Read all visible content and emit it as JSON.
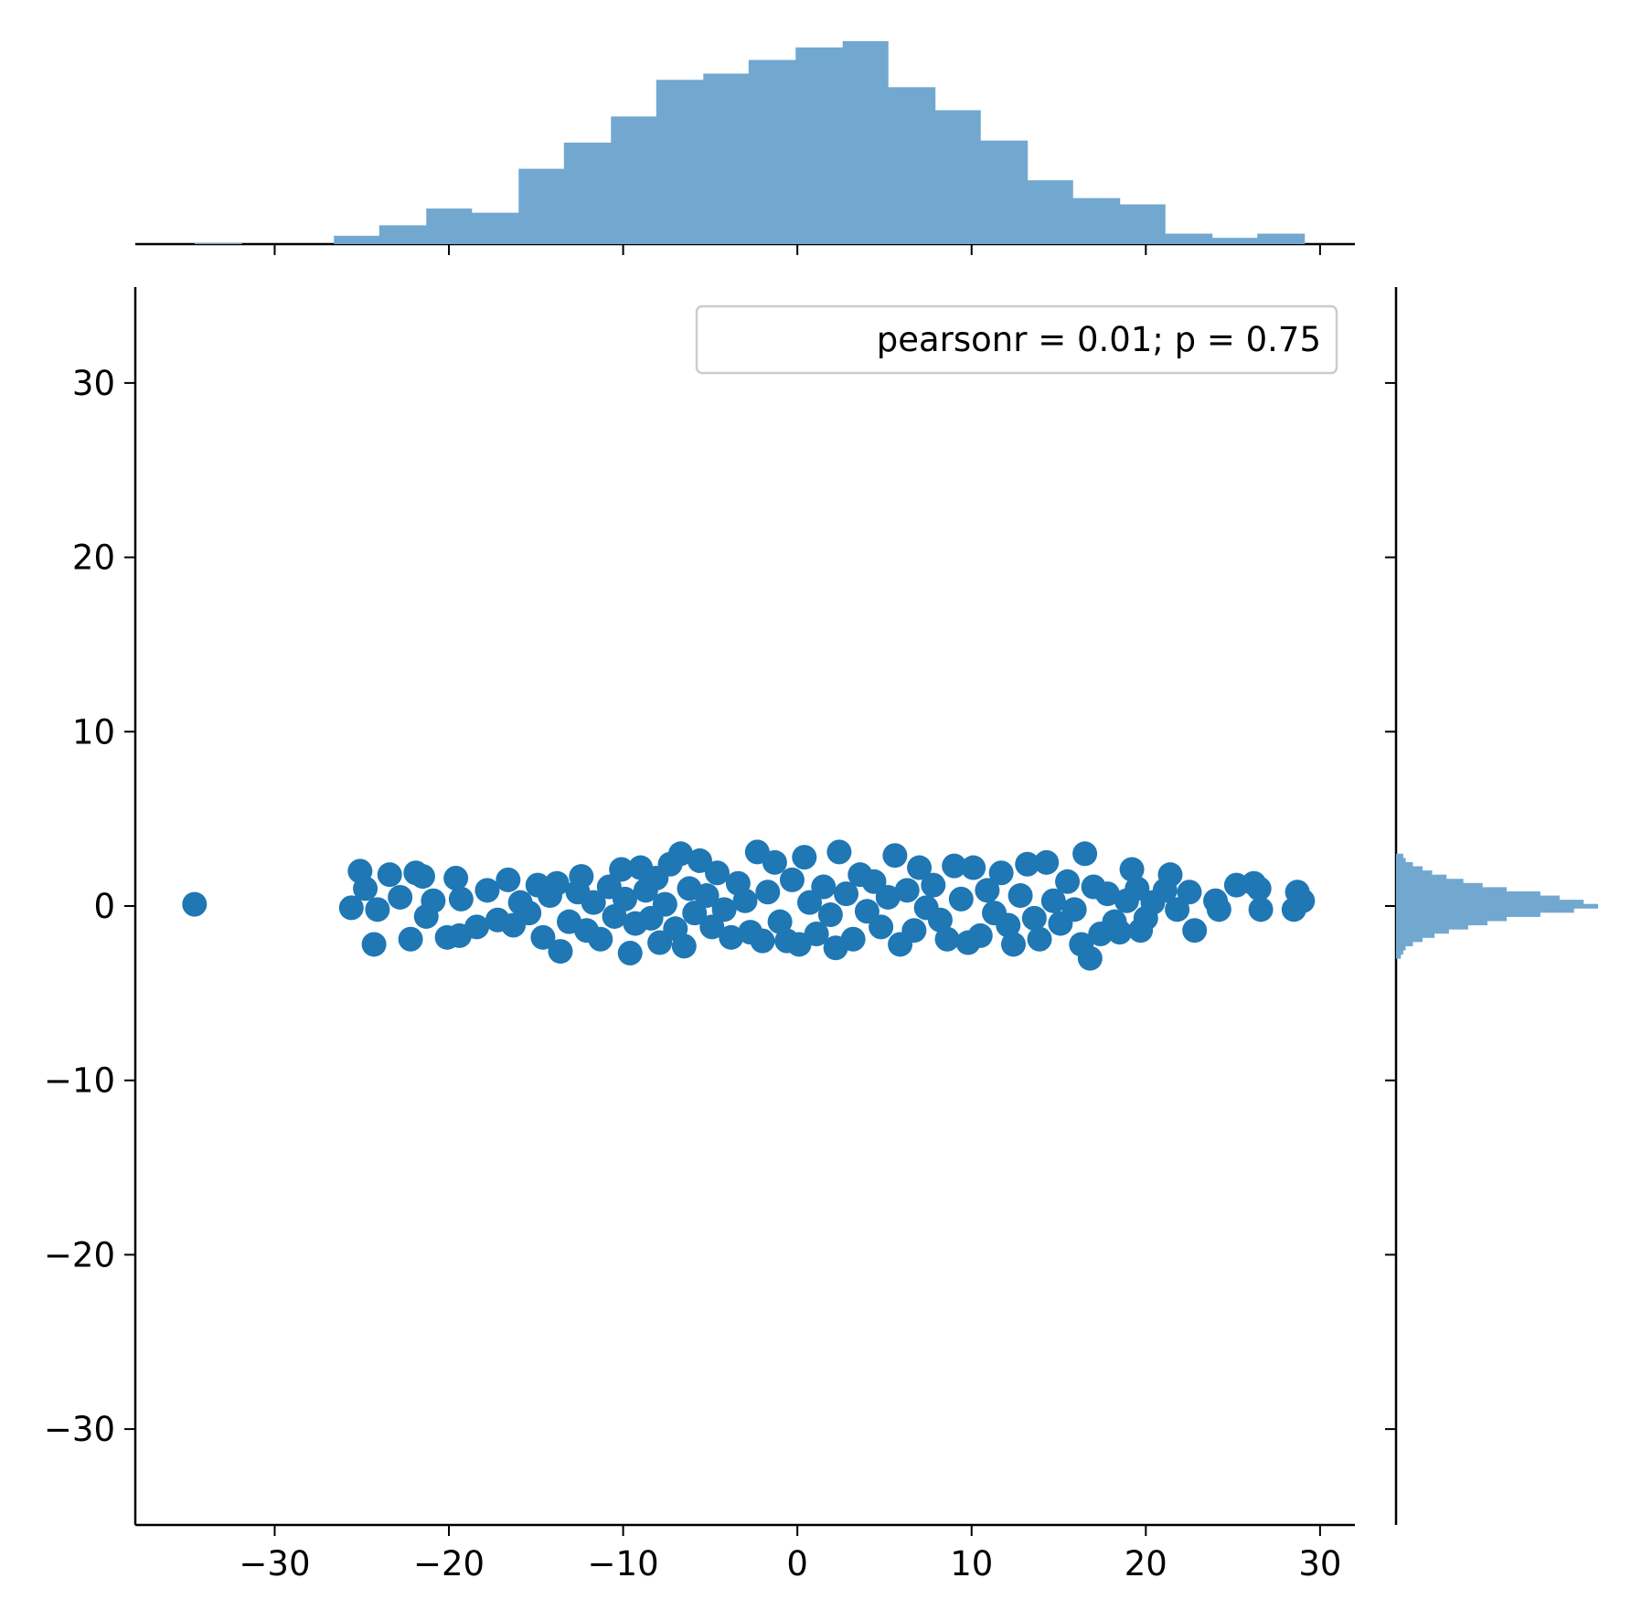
{
  "chart_data": {
    "type": "scatter",
    "kind": "jointplot with marginal histograms",
    "title": "",
    "xlabel": "",
    "ylabel": "",
    "xlim": [
      -38,
      32
    ],
    "ylim": [
      -35.5,
      35.5
    ],
    "x_ticks": [
      -30,
      -20,
      -10,
      0,
      10,
      20,
      30
    ],
    "y_ticks": [
      -30,
      -20,
      -10,
      0,
      10,
      20,
      30
    ],
    "x_tick_labels": [
      "−30",
      "−20",
      "−10",
      "0",
      "10",
      "20",
      "30"
    ],
    "y_tick_labels": [
      "−30",
      "−20",
      "−10",
      "0",
      "10",
      "20",
      "30"
    ],
    "grid": false,
    "legend": {
      "text": "pearsonr = 0.01; p = 0.75",
      "location": "upper right"
    },
    "colors": {
      "points": "#1f77b4",
      "histogram": "#72a8d0",
      "axes": "#000000",
      "legend_border": "#cccccc"
    },
    "scatter_points": [
      {
        "x": -34.6,
        "y": 0.1
      },
      {
        "x": -25.6,
        "y": -0.1
      },
      {
        "x": -25.1,
        "y": 2.0
      },
      {
        "x": -24.8,
        "y": 1.0
      },
      {
        "x": -24.3,
        "y": -2.2
      },
      {
        "x": -24.1,
        "y": -0.2
      },
      {
        "x": -23.4,
        "y": 1.8
      },
      {
        "x": -22.8,
        "y": 0.5
      },
      {
        "x": -22.2,
        "y": -1.9
      },
      {
        "x": -21.9,
        "y": 1.9
      },
      {
        "x": -21.5,
        "y": 1.7
      },
      {
        "x": -21.3,
        "y": -0.6
      },
      {
        "x": -20.9,
        "y": 0.3
      },
      {
        "x": -20.1,
        "y": -1.8
      },
      {
        "x": -19.6,
        "y": 1.6
      },
      {
        "x": -19.4,
        "y": -1.7
      },
      {
        "x": -19.3,
        "y": 0.4
      },
      {
        "x": -18.4,
        "y": -1.2
      },
      {
        "x": -17.8,
        "y": 0.9
      },
      {
        "x": -17.2,
        "y": -0.8
      },
      {
        "x": -16.6,
        "y": 1.5
      },
      {
        "x": -16.3,
        "y": -1.1
      },
      {
        "x": -15.9,
        "y": 0.2
      },
      {
        "x": -15.4,
        "y": -0.4
      },
      {
        "x": -14.9,
        "y": 1.2
      },
      {
        "x": -14.6,
        "y": -1.8
      },
      {
        "x": -14.2,
        "y": 0.6
      },
      {
        "x": -13.8,
        "y": 1.3
      },
      {
        "x": -13.6,
        "y": -2.6
      },
      {
        "x": -13.1,
        "y": -0.9
      },
      {
        "x": -12.6,
        "y": 0.8
      },
      {
        "x": -12.4,
        "y": 1.7
      },
      {
        "x": -12.1,
        "y": -1.4
      },
      {
        "x": -11.7,
        "y": 0.2
      },
      {
        "x": -11.3,
        "y": -1.9
      },
      {
        "x": -10.8,
        "y": 1.1
      },
      {
        "x": -10.5,
        "y": -0.6
      },
      {
        "x": -10.1,
        "y": 2.1
      },
      {
        "x": -9.9,
        "y": 0.4
      },
      {
        "x": -9.6,
        "y": -2.7
      },
      {
        "x": -9.3,
        "y": -1.0
      },
      {
        "x": -9.0,
        "y": 2.2
      },
      {
        "x": -8.7,
        "y": 0.9
      },
      {
        "x": -8.4,
        "y": -0.7
      },
      {
        "x": -8.1,
        "y": 1.6
      },
      {
        "x": -7.9,
        "y": -2.1
      },
      {
        "x": -7.6,
        "y": 0.1
      },
      {
        "x": -7.3,
        "y": 2.4
      },
      {
        "x": -7.0,
        "y": -1.3
      },
      {
        "x": -6.7,
        "y": 3.0
      },
      {
        "x": -6.5,
        "y": -2.3
      },
      {
        "x": -6.2,
        "y": 1.0
      },
      {
        "x": -5.9,
        "y": -0.4
      },
      {
        "x": -5.6,
        "y": 2.6
      },
      {
        "x": -5.2,
        "y": 0.6
      },
      {
        "x": -4.9,
        "y": -1.2
      },
      {
        "x": -4.6,
        "y": 1.9
      },
      {
        "x": -4.2,
        "y": -0.2
      },
      {
        "x": -3.8,
        "y": -1.8
      },
      {
        "x": -3.4,
        "y": 1.3
      },
      {
        "x": -3.0,
        "y": 0.3
      },
      {
        "x": -2.7,
        "y": -1.5
      },
      {
        "x": -2.3,
        "y": 3.1
      },
      {
        "x": -2.0,
        "y": -2.0
      },
      {
        "x": -1.7,
        "y": 0.8
      },
      {
        "x": -1.3,
        "y": 2.5
      },
      {
        "x": -1.0,
        "y": -0.9
      },
      {
        "x": -0.6,
        "y": -2.0
      },
      {
        "x": -0.3,
        "y": 1.5
      },
      {
        "x": 0.1,
        "y": -2.2
      },
      {
        "x": 0.4,
        "y": 2.8
      },
      {
        "x": 0.7,
        "y": 0.2
      },
      {
        "x": 1.1,
        "y": -1.6
      },
      {
        "x": 1.5,
        "y": 1.1
      },
      {
        "x": 1.9,
        "y": -0.5
      },
      {
        "x": 2.2,
        "y": -2.4
      },
      {
        "x": 2.4,
        "y": 3.1
      },
      {
        "x": 2.8,
        "y": 0.7
      },
      {
        "x": 3.2,
        "y": -1.9
      },
      {
        "x": 3.6,
        "y": 1.8
      },
      {
        "x": 4.0,
        "y": -0.3
      },
      {
        "x": 4.4,
        "y": 1.4
      },
      {
        "x": 4.8,
        "y": -1.2
      },
      {
        "x": 5.2,
        "y": 0.5
      },
      {
        "x": 5.6,
        "y": 2.9
      },
      {
        "x": 5.9,
        "y": -2.2
      },
      {
        "x": 6.3,
        "y": 0.9
      },
      {
        "x": 6.7,
        "y": -1.4
      },
      {
        "x": 7.0,
        "y": 2.2
      },
      {
        "x": 7.4,
        "y": -0.1
      },
      {
        "x": 7.8,
        "y": 1.2
      },
      {
        "x": 8.2,
        "y": -0.8
      },
      {
        "x": 8.6,
        "y": -1.9
      },
      {
        "x": 9.0,
        "y": 2.3
      },
      {
        "x": 9.4,
        "y": 0.4
      },
      {
        "x": 9.8,
        "y": -2.1
      },
      {
        "x": 10.1,
        "y": 2.2
      },
      {
        "x": 10.5,
        "y": -1.7
      },
      {
        "x": 10.9,
        "y": 0.9
      },
      {
        "x": 11.3,
        "y": -0.4
      },
      {
        "x": 11.7,
        "y": 1.9
      },
      {
        "x": 12.1,
        "y": -1.1
      },
      {
        "x": 12.4,
        "y": -2.2
      },
      {
        "x": 12.8,
        "y": 0.6
      },
      {
        "x": 13.2,
        "y": 2.4
      },
      {
        "x": 13.6,
        "y": -0.7
      },
      {
        "x": 13.9,
        "y": -1.9
      },
      {
        "x": 14.3,
        "y": 2.5
      },
      {
        "x": 14.7,
        "y": 0.3
      },
      {
        "x": 15.1,
        "y": -1.0
      },
      {
        "x": 15.5,
        "y": 1.4
      },
      {
        "x": 15.9,
        "y": -0.2
      },
      {
        "x": 16.3,
        "y": -2.2
      },
      {
        "x": 16.5,
        "y": 3.0
      },
      {
        "x": 16.8,
        "y": -3.0
      },
      {
        "x": 17.0,
        "y": 1.1
      },
      {
        "x": 17.4,
        "y": -1.6
      },
      {
        "x": 17.8,
        "y": 0.7
      },
      {
        "x": 18.2,
        "y": -0.9
      },
      {
        "x": 18.5,
        "y": -1.5
      },
      {
        "x": 18.9,
        "y": 0.3
      },
      {
        "x": 19.2,
        "y": 2.1
      },
      {
        "x": 19.5,
        "y": 1.0
      },
      {
        "x": 19.7,
        "y": -1.4
      },
      {
        "x": 20.0,
        "y": -0.7
      },
      {
        "x": 20.4,
        "y": 0.2
      },
      {
        "x": 21.1,
        "y": 0.9
      },
      {
        "x": 21.4,
        "y": 1.8
      },
      {
        "x": 21.8,
        "y": -0.2
      },
      {
        "x": 22.5,
        "y": 0.8
      },
      {
        "x": 22.8,
        "y": -1.4
      },
      {
        "x": 24.0,
        "y": 0.3
      },
      {
        "x": 24.2,
        "y": -0.2
      },
      {
        "x": 25.2,
        "y": 1.2
      },
      {
        "x": 26.2,
        "y": 1.3
      },
      {
        "x": 26.5,
        "y": 1.0
      },
      {
        "x": 26.6,
        "y": -0.2
      },
      {
        "x": 28.5,
        "y": -0.2
      },
      {
        "x": 28.7,
        "y": 0.8
      },
      {
        "x": 29.0,
        "y": 0.3
      }
    ],
    "x_histogram": {
      "orientation": "vertical",
      "bin_edges": [
        -34.6,
        -31.9,
        -29.3,
        -26.6,
        -24.0,
        -21.3,
        -18.7,
        -16.0,
        -13.4,
        -10.7,
        -8.1,
        -5.4,
        -2.8,
        -0.1,
        2.6,
        5.2,
        7.9,
        10.5,
        13.2,
        15.8,
        18.5,
        21.1,
        23.8,
        26.4,
        29.1
      ],
      "counts": [
        1,
        0,
        0,
        8,
        18,
        34,
        30,
        72,
        97,
        122,
        157,
        163,
        176,
        188,
        194,
        150,
        128,
        99,
        61,
        44,
        38,
        10,
        6,
        10
      ]
    },
    "y_histogram": {
      "orientation": "horizontal",
      "bin_edges": [
        -3.0,
        -2.76,
        -2.52,
        -2.28,
        -2.04,
        -1.8,
        -1.56,
        -1.32,
        -1.08,
        -0.84,
        -0.6,
        -0.36,
        -0.12,
        0.12,
        0.36,
        0.6,
        0.84,
        1.08,
        1.32,
        1.56,
        1.8,
        2.04,
        2.28,
        2.52,
        2.76,
        3.0
      ],
      "counts": [
        2,
        3,
        4,
        7,
        11,
        16,
        22,
        30,
        38,
        46,
        60,
        74,
        84,
        78,
        68,
        60,
        46,
        36,
        28,
        21,
        15,
        11,
        7,
        4,
        3
      ]
    }
  }
}
